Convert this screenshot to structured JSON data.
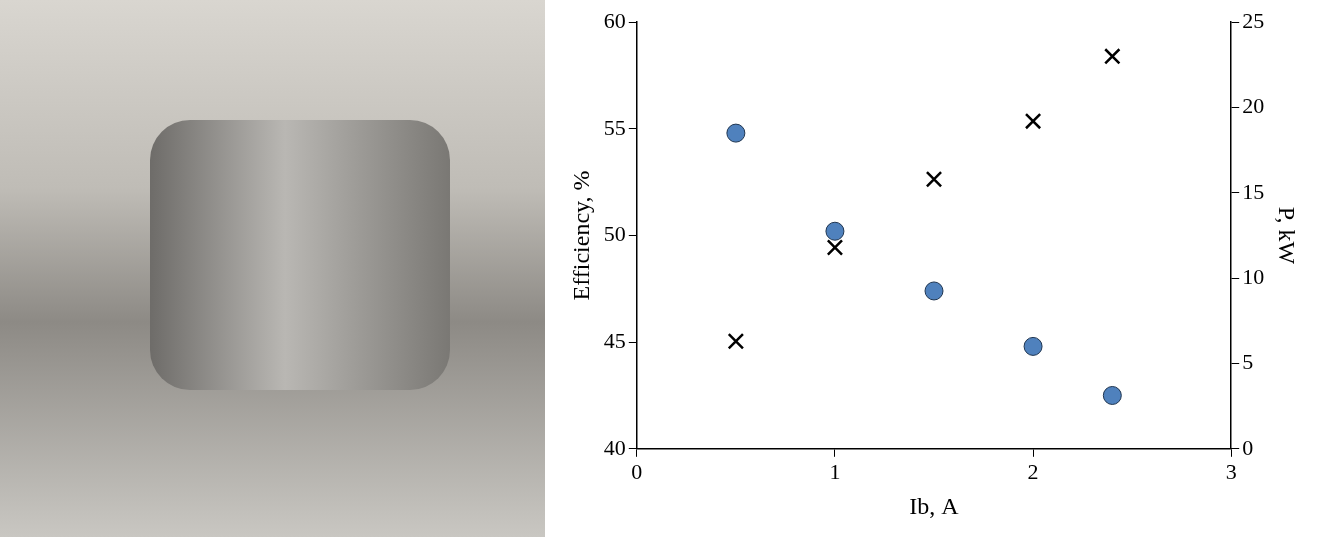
{
  "chart_data": {
    "type": "scatter",
    "x_label": "Ib, A",
    "y_label": "Efficiency, %",
    "y2_label": "P, kW",
    "x": [
      0.5,
      1,
      1.5,
      2,
      2.4
    ],
    "series": [
      {
        "values": [
          54.8,
          50.2,
          47.4,
          44.8,
          42.5
        ],
        "color": "#4f81bd",
        "marker": "circle"
      },
      {
        "values": [
          6.3,
          11.8,
          15.8,
          19.2,
          23.0
        ],
        "color": "#000000",
        "marker": "cross",
        "axis": "y2"
      }
    ],
    "xlim": [
      0,
      3
    ],
    "xticks": [
      0,
      1,
      2,
      3
    ],
    "ylim": [
      40,
      60
    ],
    "yticks": [
      40,
      45,
      50,
      55,
      60
    ],
    "y2lim": [
      0,
      25
    ],
    "y2ticks": [
      0,
      5,
      10,
      15,
      20,
      25
    ],
    "grid": false
  }
}
